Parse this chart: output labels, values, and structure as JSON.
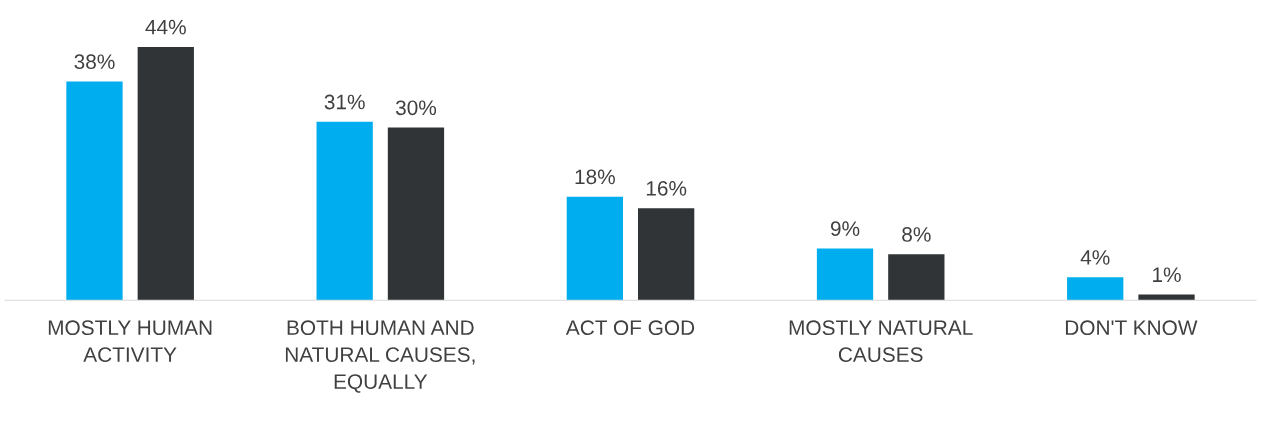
{
  "chart_data": {
    "type": "bar",
    "categories": [
      "MOSTLY HUMAN ACTIVITY",
      "BOTH HUMAN AND NATURAL CAUSES, EQUALLY",
      "ACT OF GOD",
      "MOSTLY NATURAL CAUSES",
      "DON'T KNOW"
    ],
    "series": [
      {
        "color": "#00adef",
        "values": [
          38,
          31,
          18,
          9,
          4
        ],
        "value_labels": [
          "38%",
          "31%",
          "18%",
          "9%",
          "4%"
        ]
      },
      {
        "color": "#303436",
        "values": [
          44,
          30,
          16,
          8,
          1
        ],
        "value_labels": [
          "44%",
          "30%",
          "16%",
          "8%",
          "1%"
        ]
      }
    ],
    "grid": false,
    "legend": false
  }
}
